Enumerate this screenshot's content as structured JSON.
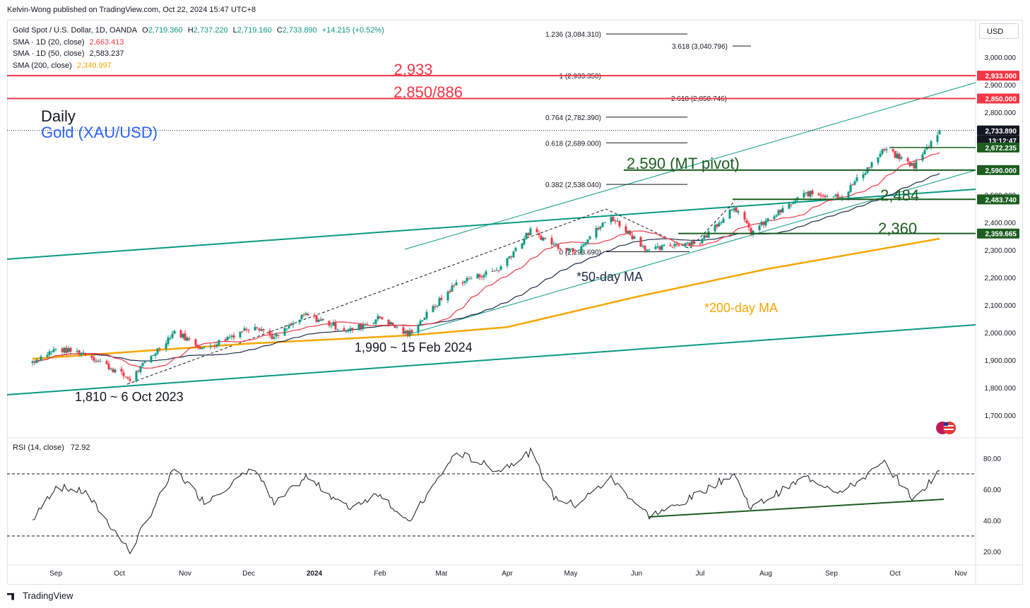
{
  "publisher": "Kelvin-Wong published on TradingView.com, Oct 22, 2024 15:47 UTC+8",
  "legend": {
    "symbol": "Gold Spot / U.S. Dollar, 1D, OANDA",
    "ohlc": [
      {
        "label": "O",
        "value": "2,719.360"
      },
      {
        "label": "H",
        "value": "2,737.220"
      },
      {
        "label": "L",
        "value": "2,719.160"
      },
      {
        "label": "C",
        "value": "2,733.890"
      }
    ],
    "change": "+14.215 (+0.52%)",
    "sma20_label": "SMA · 1D (20, close)",
    "sma20_value": "2,663.413",
    "sma50_label": "SMA · 1D (50, close)",
    "sma50_value": "2,583.237",
    "sma200_label": "SMA (200, close)",
    "sma200_value": "2,340.997"
  },
  "currency_button": "USD",
  "footer_brand": "TradingView",
  "colors": {
    "up": "#089981",
    "down": "#f23645",
    "sma20": "#f23645",
    "sma50": "#1f2d4a",
    "sma200": "#f7a600",
    "channel": "#089981",
    "support": "#1b5e20",
    "resistance": "#f23645",
    "title_blue": "#2962ff"
  },
  "chart_data": {
    "type": "candlestick",
    "title": "Daily",
    "subtitle": "Gold (XAU/USD)",
    "price_axis": {
      "range": [
        1640,
        3110
      ],
      "ticks": [
        "3,000.000",
        "2,900.000",
        "2,800.000",
        "2,500.000",
        "2,400.000",
        "2,300.000",
        "2,200.000",
        "2,100.000",
        "2,000.000",
        "1,900.000",
        "1,800.000",
        "1,700.000"
      ]
    },
    "time_axis": [
      "Sep",
      "Oct",
      "Nov",
      "Dec",
      "2024",
      "Feb",
      "Mar",
      "Apr",
      "May",
      "Jun",
      "Jul",
      "Aug",
      "Sep",
      "Oct",
      "Nov"
    ],
    "price_tags": [
      {
        "value": "2,933.000",
        "kind": "resistance"
      },
      {
        "value": "2,850.000",
        "kind": "resistance"
      },
      {
        "value": "2,733.890",
        "kind": "last"
      },
      {
        "value": "13:12:47",
        "kind": "countdown"
      },
      {
        "value": "2,672.235",
        "kind": "support"
      },
      {
        "value": "2,590.000",
        "kind": "support"
      },
      {
        "value": "2,483.740",
        "kind": "support"
      },
      {
        "value": "2,359.665",
        "kind": "support"
      }
    ],
    "fib_levels": [
      {
        "label": "1.236 (3,084.310)",
        "price": 3084.31
      },
      {
        "label": "3.618 (3,040.796)",
        "price": 3040.796
      },
      {
        "label": "1 (2,933.350)",
        "price": 2933.35
      },
      {
        "label": "2.618 (2,850.746)",
        "price": 2850.746
      },
      {
        "label": "0.764 (2,782.390)",
        "price": 2782.39
      },
      {
        "label": "0.618 (2,689.000)",
        "price": 2689
      },
      {
        "label": "0.382 (2,538.040)",
        "price": 2538.04
      },
      {
        "label": "0 (2,293.690)",
        "price": 2293.69
      }
    ],
    "horizontal_levels": [
      {
        "label": "2,933",
        "price": 2933,
        "kind": "resistance"
      },
      {
        "label": "2,850/886",
        "price": 2850,
        "kind": "resistance"
      },
      {
        "label": "2,590 (MT pivot)",
        "price": 2590,
        "kind": "support"
      },
      {
        "label": "2,484",
        "price": 2484,
        "kind": "support"
      },
      {
        "label": "2,360",
        "price": 2360,
        "kind": "support"
      }
    ],
    "annotations": [
      {
        "text": "*50-day MA",
        "color": "#1f2d4a"
      },
      {
        "text": "*200-day MA",
        "color": "#f7a600"
      },
      {
        "text": "1,990 ~ 15 Feb 2024",
        "color": "#131722"
      },
      {
        "text": "1,810 ~ 6 Oct 2023",
        "color": "#131722"
      }
    ],
    "anchor_points": [
      {
        "date": "2023-08-21",
        "close": 1895
      },
      {
        "date": "2023-09-01",
        "close": 1940
      },
      {
        "date": "2023-09-15",
        "close": 1925
      },
      {
        "date": "2023-10-06",
        "close": 1830
      },
      {
        "date": "2023-10-27",
        "close": 2005
      },
      {
        "date": "2023-11-10",
        "close": 1940
      },
      {
        "date": "2023-12-04",
        "close": 2030
      },
      {
        "date": "2023-12-13",
        "close": 1980
      },
      {
        "date": "2023-12-28",
        "close": 2065
      },
      {
        "date": "2024-01-17",
        "close": 2005
      },
      {
        "date": "2024-02-01",
        "close": 2055
      },
      {
        "date": "2024-02-14",
        "close": 1992
      },
      {
        "date": "2024-03-08",
        "close": 2180
      },
      {
        "date": "2024-03-28",
        "close": 2230
      },
      {
        "date": "2024-04-12",
        "close": 2370
      },
      {
        "date": "2024-04-23",
        "close": 2320
      },
      {
        "date": "2024-05-03",
        "close": 2300
      },
      {
        "date": "2024-05-20",
        "close": 2420
      },
      {
        "date": "2024-06-07",
        "close": 2295
      },
      {
        "date": "2024-06-21",
        "close": 2325
      },
      {
        "date": "2024-07-01",
        "close": 2330
      },
      {
        "date": "2024-07-17",
        "close": 2460
      },
      {
        "date": "2024-07-25",
        "close": 2365
      },
      {
        "date": "2024-08-20",
        "close": 2505
      },
      {
        "date": "2024-09-06",
        "close": 2495
      },
      {
        "date": "2024-09-26",
        "close": 2665
      },
      {
        "date": "2024-10-10",
        "close": 2605
      },
      {
        "date": "2024-10-22",
        "close": 2733.89
      }
    ],
    "rsi": {
      "label": "RSI (14, close)",
      "value": "72.92",
      "ticks": [
        "80.00",
        "60.00",
        "40.00",
        "20.00"
      ],
      "levels": [
        70,
        30
      ],
      "range": [
        10,
        90
      ],
      "anchor_points": [
        {
          "date": "2023-08-21",
          "value": 40
        },
        {
          "date": "2023-09-01",
          "value": 62
        },
        {
          "date": "2023-09-15",
          "value": 58
        },
        {
          "date": "2023-10-06",
          "value": 20
        },
        {
          "date": "2023-10-27",
          "value": 73
        },
        {
          "date": "2023-11-10",
          "value": 52
        },
        {
          "date": "2023-12-04",
          "value": 74
        },
        {
          "date": "2023-12-13",
          "value": 50
        },
        {
          "date": "2023-12-28",
          "value": 68
        },
        {
          "date": "2024-01-17",
          "value": 48
        },
        {
          "date": "2024-02-01",
          "value": 58
        },
        {
          "date": "2024-02-14",
          "value": 38
        },
        {
          "date": "2024-03-08",
          "value": 84
        },
        {
          "date": "2024-03-28",
          "value": 72
        },
        {
          "date": "2024-04-12",
          "value": 84
        },
        {
          "date": "2024-04-23",
          "value": 55
        },
        {
          "date": "2024-05-03",
          "value": 50
        },
        {
          "date": "2024-05-20",
          "value": 67
        },
        {
          "date": "2024-06-07",
          "value": 43
        },
        {
          "date": "2024-06-21",
          "value": 50
        },
        {
          "date": "2024-07-01",
          "value": 58
        },
        {
          "date": "2024-07-17",
          "value": 70
        },
        {
          "date": "2024-07-25",
          "value": 48
        },
        {
          "date": "2024-08-20",
          "value": 68
        },
        {
          "date": "2024-09-06",
          "value": 58
        },
        {
          "date": "2024-09-26",
          "value": 77
        },
        {
          "date": "2024-10-10",
          "value": 53
        },
        {
          "date": "2024-10-22",
          "value": 72.92
        }
      ]
    }
  }
}
